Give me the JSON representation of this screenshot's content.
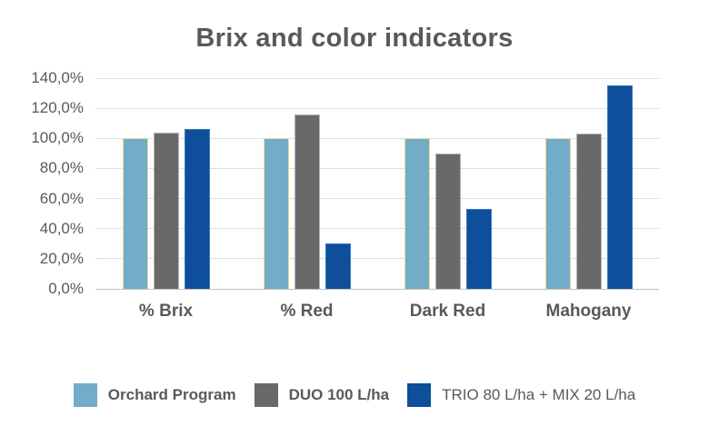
{
  "colors": {
    "text": "#595959",
    "gridline": "#dedede",
    "axis_line": "#c3c3c3",
    "background": "#ffffff"
  },
  "chart_data": {
    "type": "bar",
    "title": "Brix and color indicators",
    "categories": [
      "% Brix",
      "% Red",
      "Dark Red",
      "Mahogany"
    ],
    "series": [
      {
        "name": "Orchard Program",
        "color": "#72acc7",
        "border_color": "#e9dca2",
        "legend_bold": true,
        "values": [
          100,
          100,
          100,
          100
        ]
      },
      {
        "name": "DUO 100 L/ha",
        "color": "#696969",
        "border_color": "#b8b8af",
        "legend_bold": true,
        "values": [
          104,
          116,
          90,
          103
        ]
      },
      {
        "name": "TRIO 80 L/ha + MIX 20 L/ha",
        "color": "#0e4e9b",
        "border_color": "#3b79bc",
        "legend_bold": false,
        "values": [
          106,
          30,
          53,
          135
        ]
      }
    ],
    "xlabel": "",
    "ylabel": "",
    "ylim": [
      0,
      140
    ],
    "ytick_step": 20,
    "ytick_labels": [
      "0,0%",
      "20,0%",
      "40,0%",
      "60,0%",
      "80,0%",
      "100,0%",
      "120,0%",
      "140,0%"
    ],
    "value_suffix": "%",
    "decimal_separator": ",",
    "grid": true,
    "legend_position": "bottom"
  }
}
